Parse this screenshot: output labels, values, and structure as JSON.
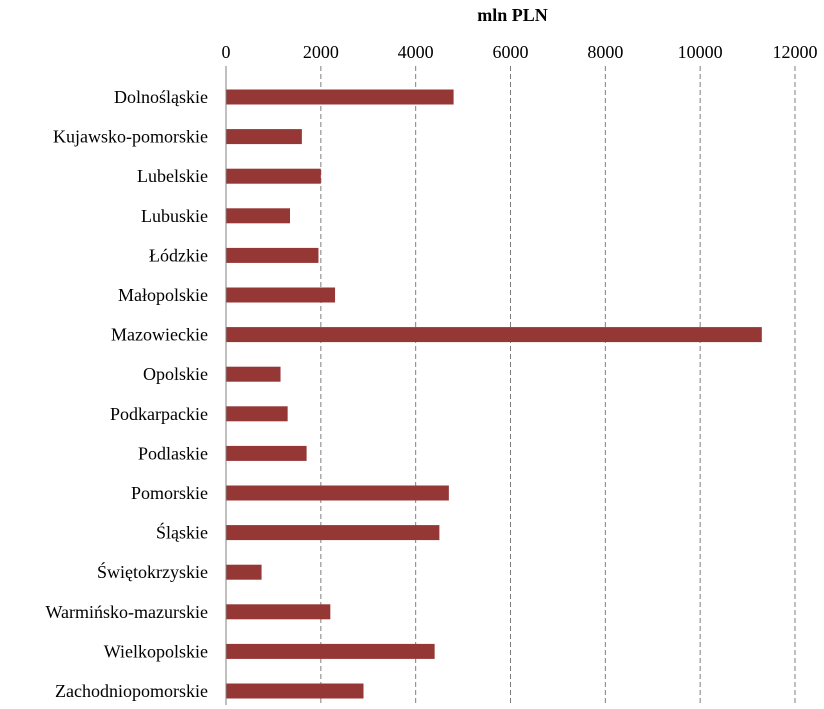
{
  "chart_data": {
    "type": "bar",
    "orientation": "horizontal",
    "title": "",
    "xlabel": "mln PLN",
    "ylabel": "",
    "xlim": [
      0,
      12000
    ],
    "xticks": [
      0,
      2000,
      4000,
      6000,
      8000,
      10000,
      12000
    ],
    "xaxis_position": "top",
    "grid": "vertical dashed",
    "legend": "none",
    "categories": [
      "Dolnośląskie",
      "Kujawsko-pomorskie",
      "Lubelskie",
      "Lubuskie",
      "Łódzkie",
      "Małopolskie",
      "Mazowieckie",
      "Opolskie",
      "Podkarpackie",
      "Podlaskie",
      "Pomorskie",
      "Śląskie",
      "Świętokrzyskie",
      "Warmińsko-mazurskie",
      "Wielkopolskie",
      "Zachodniopomorskie"
    ],
    "values": [
      4800,
      1600,
      2000,
      1350,
      1950,
      2300,
      11300,
      1150,
      1300,
      1700,
      4700,
      4500,
      750,
      2200,
      4400,
      2900
    ],
    "colors": {
      "bar": "#953735",
      "grid": "#7f7f7f",
      "axis": "#808080"
    }
  }
}
